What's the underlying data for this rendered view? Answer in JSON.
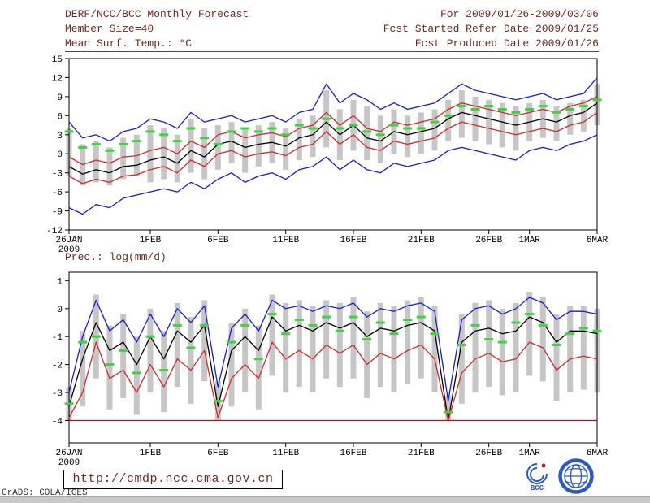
{
  "header": {
    "title": "DERF/NCC/BCC Monthly Forecast",
    "member_size": "Member Size=40",
    "for_range": "For 2009/01/26-2009/03/06",
    "refer_date": "Fcst Started Refer Date 2009/01/25",
    "produced_date": "Fcst Produced Date 2009/01/26"
  },
  "footer": {
    "url": "http://cmdp.ncc.cma.gov.cn",
    "grads": "GrADS: COLA/IGES",
    "bcc_label": "BCC"
  },
  "colors": {
    "header_text": "#6f2a24",
    "ensemble_extreme_line": "#1a1acd",
    "quartile_line": "#cc2929",
    "median_line": "#000000",
    "observation_dash": "#44d044",
    "spread_bar": "#c6c6c6",
    "precip_floor_line": "#aa1111"
  },
  "chart_data": [
    {
      "type": "line",
      "name": "mean-surface-temperature",
      "title": "Mean Surf. Temp.: °C",
      "ylim": [
        -12,
        15
      ],
      "yticks": [
        15,
        12,
        9,
        6,
        3,
        0,
        -3,
        -6,
        -9,
        -12
      ],
      "grid": false,
      "legend": "none",
      "xticks": [
        {
          "label": "26JAN",
          "sublabel": "2009",
          "index": 0
        },
        {
          "label": "1FEB",
          "index": 6
        },
        {
          "label": "6FEB",
          "index": 11
        },
        {
          "label": "11FEB",
          "index": 16
        },
        {
          "label": "16FEB",
          "index": 21
        },
        {
          "label": "21FEB",
          "index": 26
        },
        {
          "label": "26FEB",
          "index": 31
        },
        {
          "label": "1MAR",
          "index": 34
        },
        {
          "label": "6MAR",
          "index": 39
        }
      ],
      "bars": {
        "name": "ensemble-spread",
        "color": "#c6c6c6",
        "low": [
          -3.5,
          -5,
          -4.5,
          -5,
          -4,
          -3.5,
          -4.5,
          -4,
          -4.5,
          -3,
          -4,
          -2.5,
          -1.5,
          -3,
          -2,
          -1.5,
          -2.5,
          -1,
          -0.5,
          1,
          -1,
          0.5,
          -1,
          -1.5,
          0,
          -0.5,
          0,
          0.5,
          2,
          2.5,
          2,
          1.5,
          1,
          0.5,
          2,
          2.5,
          2,
          3,
          3.5,
          4.5
        ],
        "high": [
          4,
          1.5,
          2,
          1,
          2.5,
          3,
          4.5,
          4,
          3,
          5.5,
          4,
          4.5,
          5,
          4,
          4.5,
          5,
          4,
          5.5,
          6,
          10,
          7,
          8.5,
          7.5,
          6,
          7,
          6,
          6.5,
          7,
          8.5,
          10,
          9,
          8.5,
          8,
          7.5,
          8,
          8.5,
          7.5,
          8,
          8.5,
          11
        ]
      },
      "series": [
        {
          "name": "ensemble-max",
          "color": "#1a1acd",
          "style": "line",
          "values": [
            5,
            2.5,
            3,
            2,
            3.5,
            4,
            5.5,
            5,
            4,
            6.5,
            5,
            5.5,
            6,
            5,
            5.5,
            6,
            5,
            6.5,
            7,
            11,
            8,
            9.5,
            8.5,
            7,
            8,
            7,
            7.5,
            8,
            9.5,
            11,
            10,
            9.5,
            9,
            8.5,
            9,
            9.5,
            8.5,
            9,
            9.5,
            12
          ]
        },
        {
          "name": "upper-quartile",
          "color": "#cc2929",
          "style": "line",
          "values": [
            -0.5,
            -1.7,
            -1,
            -1.5,
            -0.5,
            -0.3,
            0.5,
            1,
            0,
            2,
            1,
            3,
            3.5,
            2.5,
            3,
            3.3,
            2.7,
            4,
            4.5,
            6.5,
            4.5,
            6,
            4,
            3.5,
            5,
            4.5,
            5,
            5.5,
            7,
            8,
            7.5,
            7,
            6.5,
            6,
            6.5,
            7,
            6.5,
            7.5,
            8,
            9
          ]
        },
        {
          "name": "ensemble-median",
          "color": "#000000",
          "style": "line",
          "values": [
            -2,
            -3.2,
            -2.5,
            -3,
            -2,
            -1.8,
            -1,
            -0.5,
            -1.5,
            0.5,
            -0.5,
            1.5,
            2,
            1,
            1.5,
            1.8,
            1.2,
            2.5,
            3,
            5,
            3,
            4.5,
            2.5,
            2,
            3.5,
            3,
            3.5,
            4,
            5.5,
            6.5,
            6,
            5.5,
            5,
            4.5,
            5,
            5.5,
            5,
            6,
            6.5,
            8
          ]
        },
        {
          "name": "lower-quartile",
          "color": "#cc2929",
          "style": "line",
          "values": [
            -3.5,
            -4.7,
            -4,
            -4.5,
            -3.5,
            -3.3,
            -2.5,
            -2,
            -3,
            -1,
            -2,
            0,
            0.5,
            -0.5,
            0,
            0.3,
            -0.3,
            1,
            1.5,
            3.5,
            1.5,
            3,
            1,
            0.5,
            2,
            1.5,
            2,
            2.5,
            4,
            5,
            4.5,
            4,
            3.5,
            3,
            3.5,
            4,
            3.5,
            4.5,
            5,
            6.5
          ]
        },
        {
          "name": "ensemble-min",
          "color": "#1a1acd",
          "style": "line",
          "values": [
            -8.5,
            -9.5,
            -8,
            -8.5,
            -7,
            -6.5,
            -6,
            -5.5,
            -6,
            -4.5,
            -5.5,
            -4,
            -3,
            -4.5,
            -3.5,
            -3,
            -4,
            -2.5,
            -2,
            -0.5,
            -2.5,
            -1,
            -2.5,
            -3,
            -1.5,
            -2,
            -1.5,
            -1,
            0.5,
            1,
            0.5,
            0,
            -0.5,
            -1,
            0.5,
            1,
            0.5,
            1.5,
            2,
            3
          ]
        },
        {
          "name": "observation",
          "color": "#44d044",
          "style": "dash",
          "values": [
            3.5,
            1,
            1.5,
            0.5,
            1.5,
            2,
            3.5,
            3,
            2,
            4,
            2.5,
            1.5,
            3.5,
            4,
            3.5,
            4,
            3,
            4.5,
            4,
            5.5,
            4,
            4.5,
            3.5,
            3,
            4.5,
            4,
            4,
            5,
            6,
            7.5,
            7,
            7.5,
            7,
            6.5,
            7,
            7.5,
            6.5,
            7,
            7.5,
            8.5
          ]
        }
      ]
    },
    {
      "type": "line",
      "name": "precipitation",
      "title": "Prec.: log(mm/d)",
      "ylim": [
        -4.8,
        1.3
      ],
      "yticks": [
        1,
        0,
        -1,
        -2,
        -3,
        -4
      ],
      "grid": false,
      "legend": "none",
      "xticks": [
        {
          "label": "26JAN",
          "sublabel": "2009",
          "index": 0
        },
        {
          "label": "1FEB",
          "index": 6
        },
        {
          "label": "6FEB",
          "index": 11
        },
        {
          "label": "11FEB",
          "index": 16
        },
        {
          "label": "16FEB",
          "index": 21
        },
        {
          "label": "21FEB",
          "index": 26
        },
        {
          "label": "26FEB",
          "index": 31
        },
        {
          "label": "1MAR",
          "index": 34
        },
        {
          "label": "6MAR",
          "index": 39
        }
      ],
      "const_lines": [
        {
          "name": "precip-floor",
          "y": -4,
          "color": "#aa1111"
        }
      ],
      "bars": {
        "name": "ensemble-spread",
        "color": "#c6c6c6",
        "low": [
          -4,
          -3.5,
          -2.5,
          -3.6,
          -3.2,
          -3.8,
          -3,
          -3.7,
          -2.8,
          -3.4,
          -2.6,
          -4,
          -3.5,
          -3,
          -3.6,
          -2.4,
          -3,
          -2.8,
          -3,
          -2.5,
          -2.8,
          -2.5,
          -3.2,
          -2.8,
          -3,
          -2.7,
          -2.5,
          -3,
          -4,
          -3.4,
          -3,
          -2.8,
          -3.1,
          -3,
          -2.4,
          -2.6,
          -3.3,
          -3,
          -2.9,
          -3
        ],
        "high": [
          -2.8,
          -0.8,
          0.5,
          -0.6,
          -0.2,
          -1,
          0,
          -0.8,
          0.2,
          -0.3,
          0.3,
          -2.6,
          -0.5,
          0,
          -0.6,
          0.5,
          0.2,
          0.3,
          0.1,
          0.3,
          0.2,
          0.4,
          -0.1,
          0.2,
          0.1,
          0.3,
          0.4,
          0.1,
          -3.1,
          -0.2,
          0.2,
          0.3,
          0,
          0.2,
          0.6,
          0.4,
          -0.2,
          0.1,
          0.1,
          0
        ]
      },
      "series": [
        {
          "name": "ensemble-max",
          "color": "#1a1acd",
          "style": "line",
          "values": [
            -3,
            -1,
            0.3,
            -0.8,
            -0.4,
            -1.2,
            -0.2,
            -1,
            0,
            -0.5,
            0.1,
            -2.8,
            -0.7,
            -0.2,
            -0.8,
            0.3,
            0,
            0.1,
            -0.1,
            0.1,
            0,
            0.2,
            -0.3,
            0,
            -0.1,
            0.1,
            0.2,
            -0.1,
            -3.3,
            -0.4,
            0,
            0.1,
            -0.2,
            0,
            0.4,
            0.2,
            -0.4,
            -0.1,
            -0.1,
            -0.2
          ]
        },
        {
          "name": "ensemble-median",
          "color": "#000000",
          "style": "line",
          "values": [
            -3.5,
            -1.8,
            -0.5,
            -1.5,
            -1.2,
            -2,
            -1,
            -1.8,
            -0.8,
            -1.2,
            -0.6,
            -3.5,
            -1.5,
            -1,
            -1.5,
            -0.3,
            -0.8,
            -0.6,
            -0.8,
            -0.5,
            -0.7,
            -0.5,
            -1,
            -0.7,
            -0.8,
            -0.6,
            -0.5,
            -0.8,
            -4,
            -1.2,
            -0.8,
            -0.7,
            -0.9,
            -0.8,
            -0.3,
            -0.5,
            -1.2,
            -0.8,
            -0.8,
            -0.9
          ]
        },
        {
          "name": "lower-quartile",
          "color": "#cc2929",
          "style": "line",
          "values": [
            -3.9,
            -3,
            -1.2,
            -2.5,
            -2.2,
            -3,
            -2,
            -2.8,
            -1.8,
            -2.2,
            -1.5,
            -3.9,
            -2.5,
            -2,
            -2.5,
            -1.2,
            -1.8,
            -1.5,
            -1.8,
            -1.3,
            -1.6,
            -1.3,
            -2,
            -1.6,
            -1.8,
            -1.5,
            -1.3,
            -1.8,
            -4,
            -2.3,
            -1.8,
            -1.6,
            -1.9,
            -1.8,
            -1.2,
            -1.4,
            -2.2,
            -1.8,
            -1.7,
            -1.8
          ]
        },
        {
          "name": "observation",
          "color": "#44d044",
          "style": "dash",
          "values": [
            -3.4,
            -1.2,
            -1,
            -2,
            -1.5,
            -2.3,
            -1,
            -2.2,
            -0.6,
            -1.4,
            -0.6,
            -3.3,
            -1.2,
            -0.6,
            -1.8,
            -0.2,
            -0.9,
            -0.4,
            -0.6,
            -0.3,
            -0.8,
            -0.3,
            -1.1,
            -0.5,
            -0.9,
            -0.4,
            -0.3,
            -0.9,
            -3.7,
            -1.3,
            -0.6,
            -1.1,
            -1.2,
            -0.5,
            -0.2,
            -0.6,
            -1.3,
            -0.9,
            -0.7,
            -0.8
          ]
        }
      ]
    }
  ]
}
